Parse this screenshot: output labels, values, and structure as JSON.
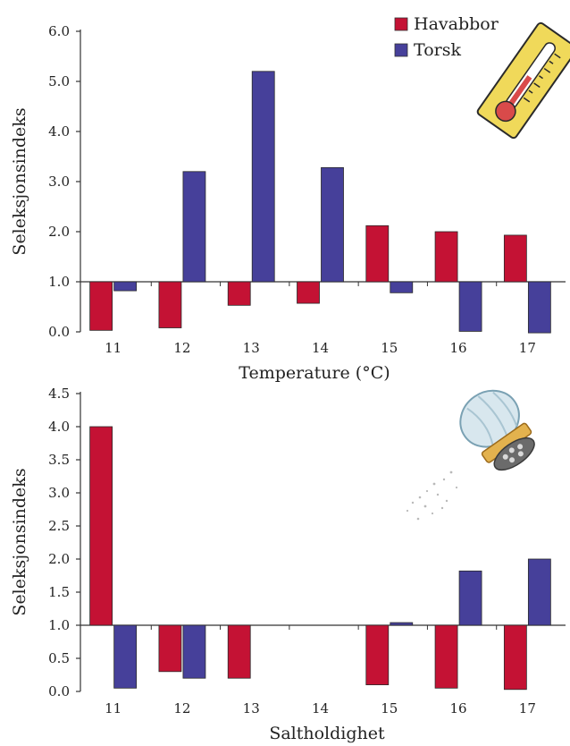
{
  "colors": {
    "havabbor": "#c41234",
    "torsk": "#46409a",
    "axis": "#333333"
  },
  "legend": {
    "items": [
      "Havabbor",
      "Torsk"
    ],
    "placement": "top-right"
  },
  "decorations": [
    "thermometer-icon",
    "salt-shaker-icon"
  ],
  "chart_data": [
    {
      "type": "bar",
      "baseline": 1.0,
      "categories": [
        "11",
        "12",
        "13",
        "14",
        "15",
        "16",
        "17"
      ],
      "series": [
        {
          "name": "Havabbor",
          "values": [
            0.03,
            0.08,
            0.53,
            0.57,
            2.12,
            2.0,
            1.93
          ]
        },
        {
          "name": "Torsk",
          "values": [
            0.82,
            3.2,
            5.2,
            3.28,
            0.78,
            0.01,
            -0.02
          ]
        }
      ],
      "xlabel": "Temperature (°C)",
      "ylabel": "Seleksjonsindeks",
      "ylim": [
        0,
        6
      ],
      "yticks": [
        "0.0",
        "1.0",
        "2.0",
        "3.0",
        "4.0",
        "5.0",
        "6.0"
      ]
    },
    {
      "type": "bar",
      "baseline": 1.0,
      "categories": [
        "11",
        "12",
        "13",
        "14",
        "15",
        "16",
        "17"
      ],
      "series": [
        {
          "name": "Havabbor",
          "values": [
            4.0,
            0.3,
            0.2,
            null,
            0.1,
            0.05,
            0.03
          ]
        },
        {
          "name": "Torsk",
          "values": [
            0.05,
            0.2,
            null,
            null,
            1.04,
            1.82,
            2.0
          ]
        }
      ],
      "xlabel": "Saltholdighet",
      "ylabel": "Seleksjonsindeks",
      "ylim": [
        0,
        4.5
      ],
      "yticks": [
        "0.0",
        "0.5",
        "1.0",
        "1.5",
        "2.0",
        "2.5",
        "3.0",
        "3.5",
        "4.0",
        "4.5"
      ]
    }
  ]
}
